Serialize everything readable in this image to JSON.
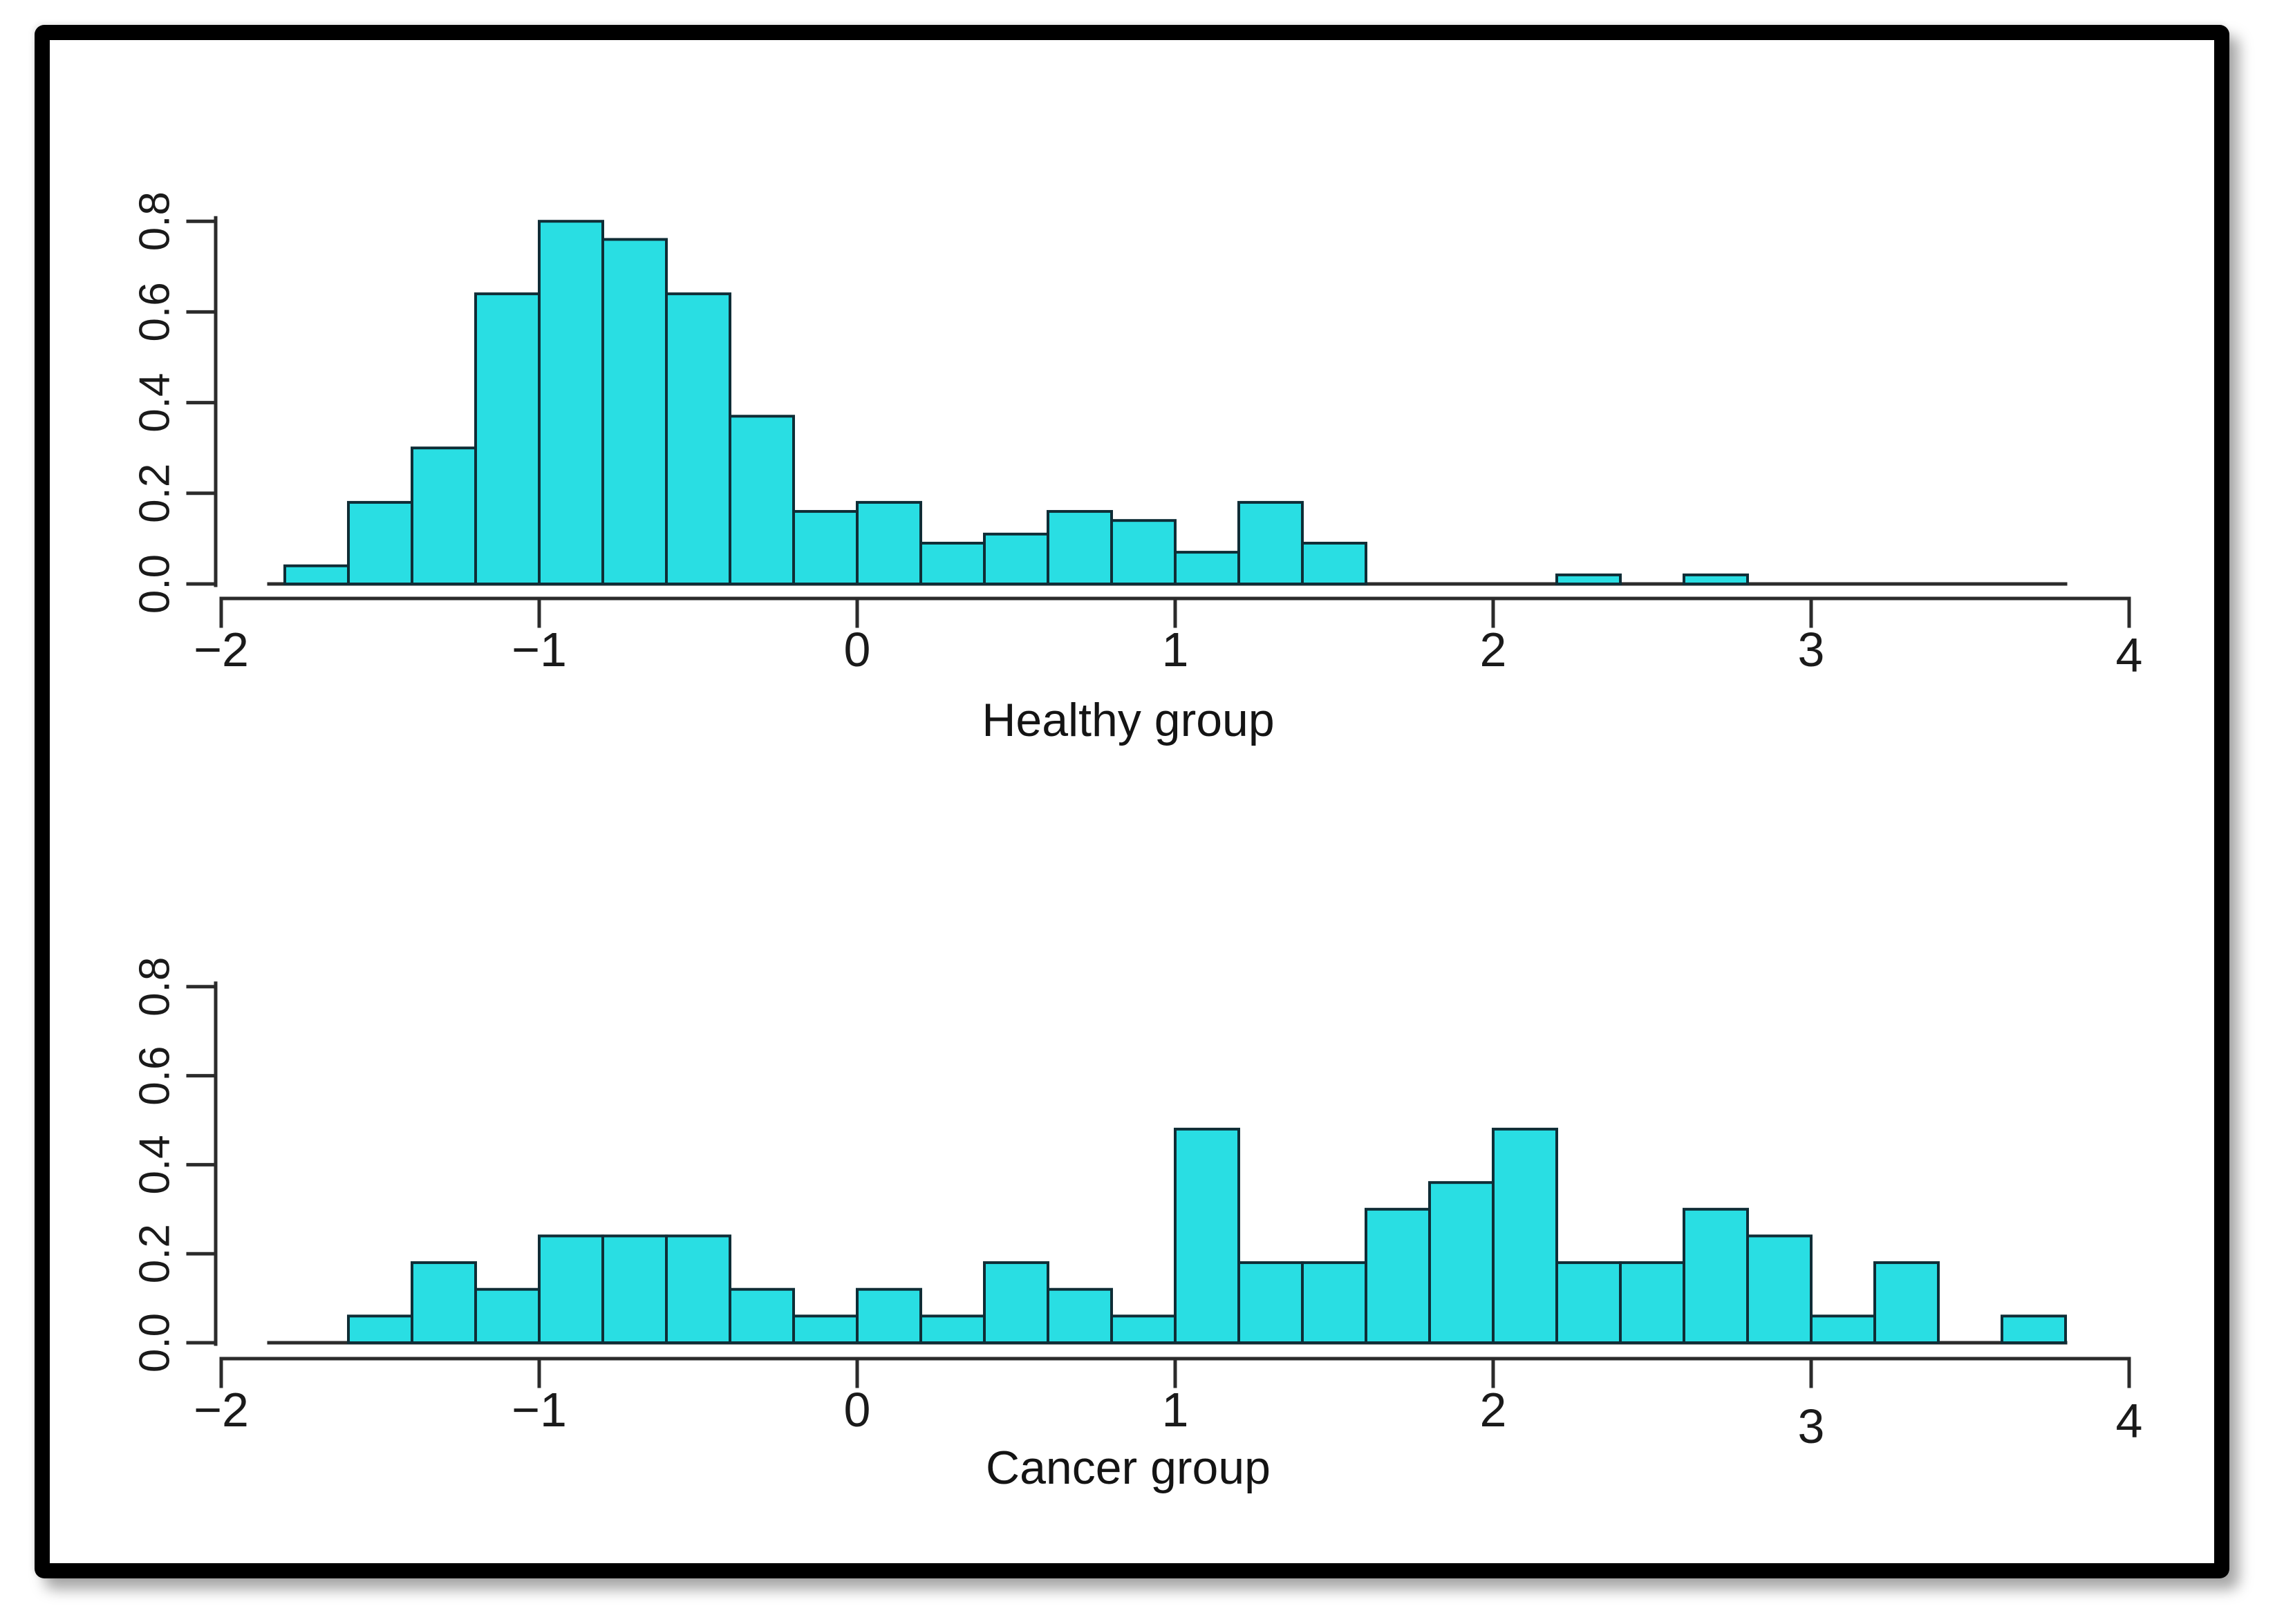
{
  "figure": {
    "description": "Two stacked density histograms in a thick black frame",
    "background": "#FFFFFF",
    "frame_color": "#000000"
  },
  "colors": {
    "bar_fill": "#29DEE3",
    "bar_stroke": "#0F2D36",
    "axis": "#2B2B2B",
    "text": "#1A1A1A"
  },
  "chart_data": [
    {
      "type": "bar",
      "title": "Healthy group",
      "xlabel": "Healthy group",
      "ylabel": "",
      "xlim": [
        -2,
        4
      ],
      "ylim": [
        0,
        0.8
      ],
      "grid": false,
      "legend": "none",
      "xtick_values": [
        -2,
        -1,
        0,
        1,
        2,
        3,
        4
      ],
      "xtick_labels": [
        "−2",
        "−1",
        "0",
        "1",
        "2",
        "3",
        "4"
      ],
      "ytick_values": [
        0.0,
        0.2,
        0.4,
        0.6,
        0.8
      ],
      "ytick_labels": [
        "0.0",
        "0.2",
        "0.4",
        "0.6",
        "0.8"
      ],
      "bin_start": -1.8,
      "bin_width": 0.2,
      "densities": [
        0.04,
        0.18,
        0.3,
        0.64,
        0.8,
        0.76,
        0.64,
        0.37,
        0.16,
        0.18,
        0.09,
        0.11,
        0.16,
        0.14,
        0.07,
        0.18,
        0.09,
        0,
        0,
        0,
        0.02,
        0,
        0.02
      ],
      "baseline_extent": [
        -1.85,
        3.8
      ]
    },
    {
      "type": "bar",
      "title": "Cancer group",
      "xlabel": "Cancer group",
      "ylabel": "",
      "xlim": [
        -2,
        4
      ],
      "ylim": [
        0,
        0.8
      ],
      "grid": false,
      "legend": "none",
      "xtick_values": [
        -2,
        -1,
        0,
        1,
        2,
        3,
        4
      ],
      "xtick_labels": [
        "−2",
        "−1",
        "0",
        "1",
        "2",
        "3",
        "4"
      ],
      "ytick_values": [
        0.0,
        0.2,
        0.4,
        0.6,
        0.8
      ],
      "ytick_labels": [
        "0.0",
        "0.2",
        "0.4",
        "0.6",
        "0.8"
      ],
      "bin_start": -1.6,
      "bin_width": 0.2,
      "densities": [
        0.06,
        0.18,
        0.12,
        0.24,
        0.24,
        0.24,
        0.12,
        0.06,
        0.12,
        0.06,
        0.18,
        0.12,
        0.06,
        0.48,
        0.18,
        0.18,
        0.3,
        0.36,
        0.48,
        0.18,
        0.18,
        0.3,
        0.24,
        0.06,
        0.18,
        0,
        0.06
      ],
      "baseline_extent": [
        -1.85,
        3.8
      ]
    }
  ]
}
